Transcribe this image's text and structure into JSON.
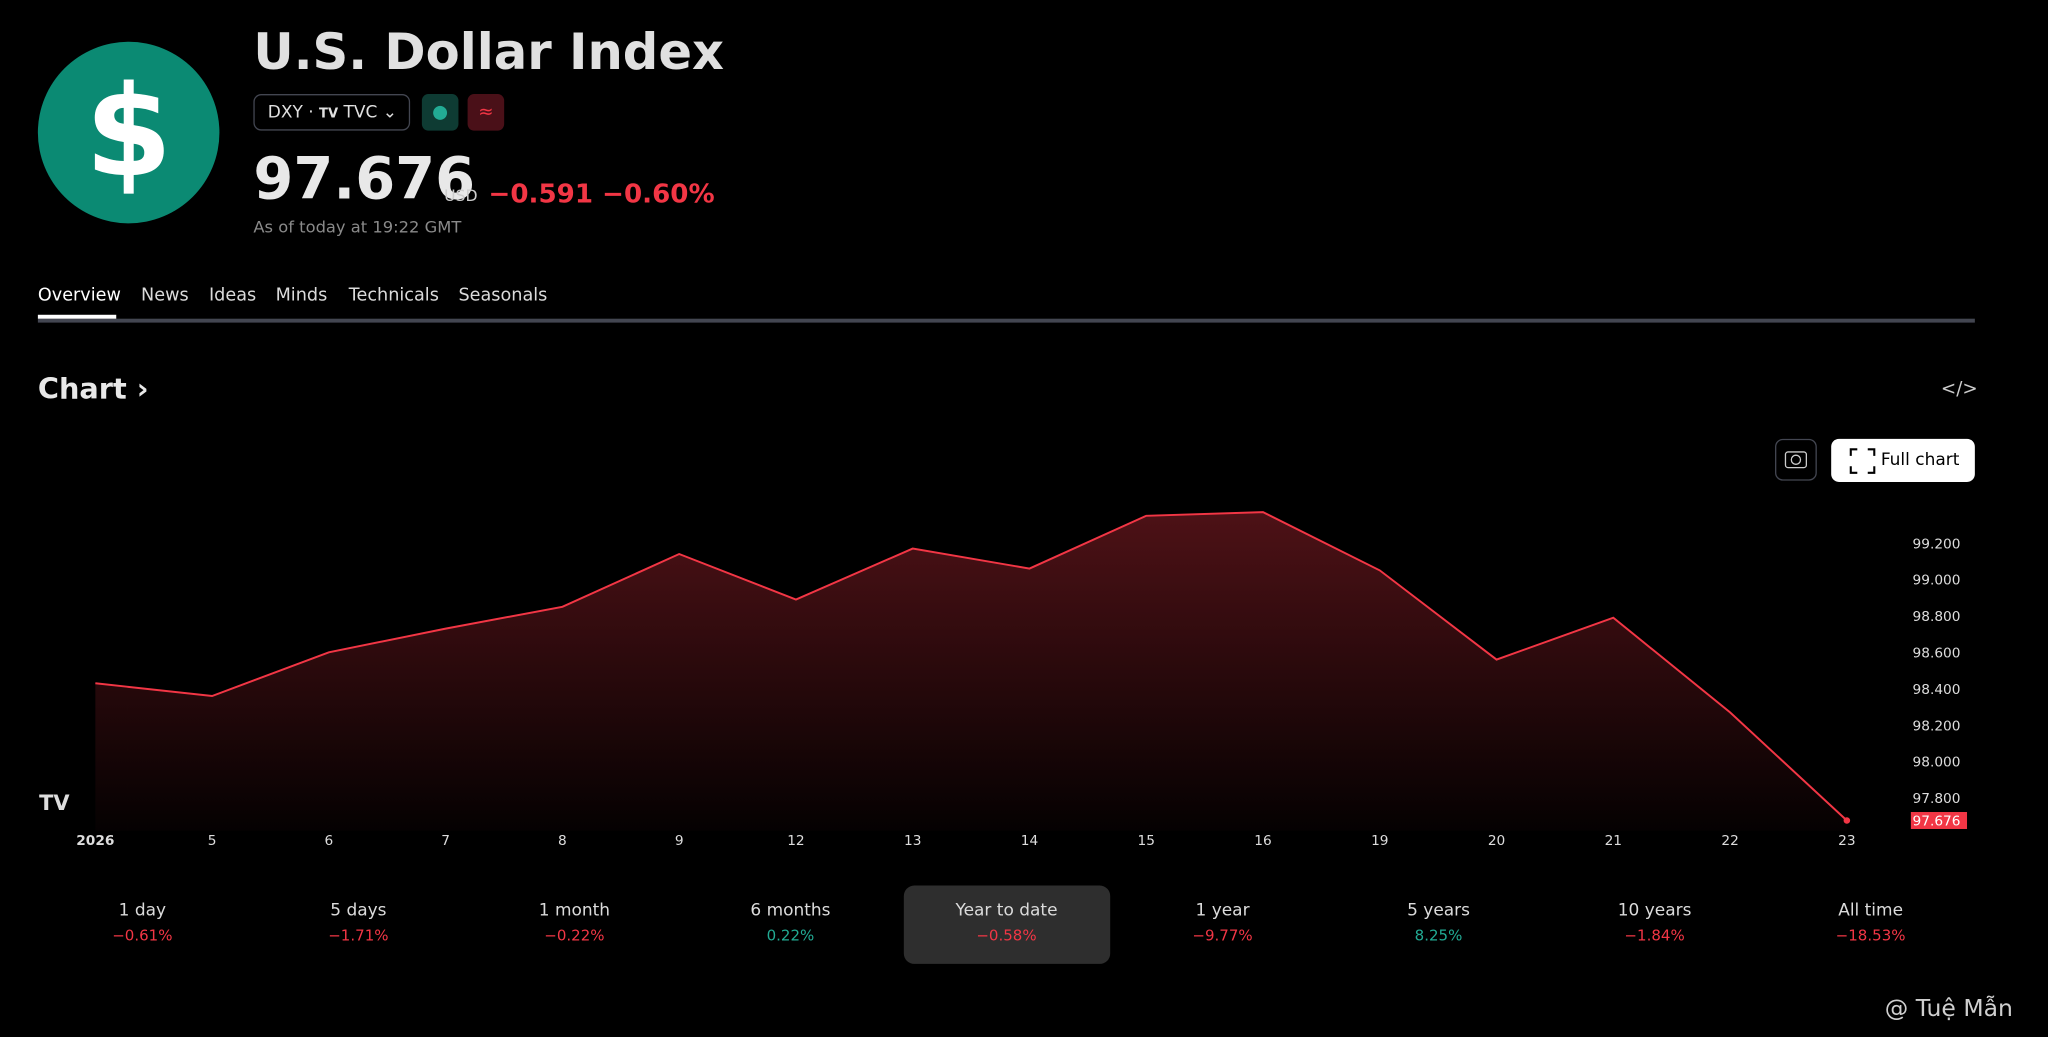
{
  "header": {
    "logo": "$",
    "title": "U.S. Dollar Index",
    "ticker": "DXY",
    "exchange": "TVC",
    "price": "97.676",
    "currency": "USD",
    "change": "−0.591",
    "change_pct": "−0.60%",
    "as_of": "As of today at 19:22 GMT"
  },
  "tabs": [
    "Overview",
    "News",
    "Ideas",
    "Minds",
    "Technicals",
    "Seasonals"
  ],
  "chart_heading": "Chart",
  "full_chart": "Full chart",
  "chart_data": {
    "type": "area",
    "color": "#f23645",
    "categories": [
      "2026",
      "5",
      "6",
      "7",
      "8",
      "9",
      "12",
      "13",
      "14",
      "15",
      "16",
      "19",
      "20",
      "21",
      "22",
      "23"
    ],
    "values": [
      98.43,
      98.36,
      98.6,
      98.73,
      98.85,
      99.14,
      98.89,
      99.17,
      99.06,
      99.35,
      99.37,
      99.05,
      98.56,
      98.79,
      98.27,
      97.676
    ],
    "ylim": [
      97.62,
      99.5
    ],
    "yticks": [
      {
        "value": 97.8,
        "label": "97.800"
      },
      {
        "value": 98,
        "label": "98.000"
      },
      {
        "value": 98.2,
        "label": "98.200"
      },
      {
        "value": 98.4,
        "label": "98.400"
      },
      {
        "value": 98.6,
        "label": "98.600"
      },
      {
        "value": 98.8,
        "label": "98.800"
      },
      {
        "value": 99,
        "label": "99.000"
      },
      {
        "value": 99.2,
        "label": "99.200"
      }
    ]
  },
  "periods": [
    {
      "label": "1 day",
      "change": "−0.61%",
      "color": "#f23645"
    },
    {
      "label": "5 days",
      "change": "−1.71%",
      "color": "#f23645"
    },
    {
      "label": "1 month",
      "change": "−0.22%",
      "color": "#f23645"
    },
    {
      "label": "6 months",
      "change": "0.22%",
      "color": "#22ab94"
    },
    {
      "label": "Year to date",
      "change": "−0.58%",
      "color": "#f23645",
      "selected": true
    },
    {
      "label": "1 year",
      "change": "−9.77%",
      "color": "#f23645"
    },
    {
      "label": "5 years",
      "change": "8.25%",
      "color": "#22ab94"
    },
    {
      "label": "10 years",
      "change": "−1.84%",
      "color": "#f23645"
    },
    {
      "label": "All time",
      "change": "−18.53%",
      "color": "#f23645"
    }
  ],
  "watermark": "@ Tuệ Mẫn"
}
